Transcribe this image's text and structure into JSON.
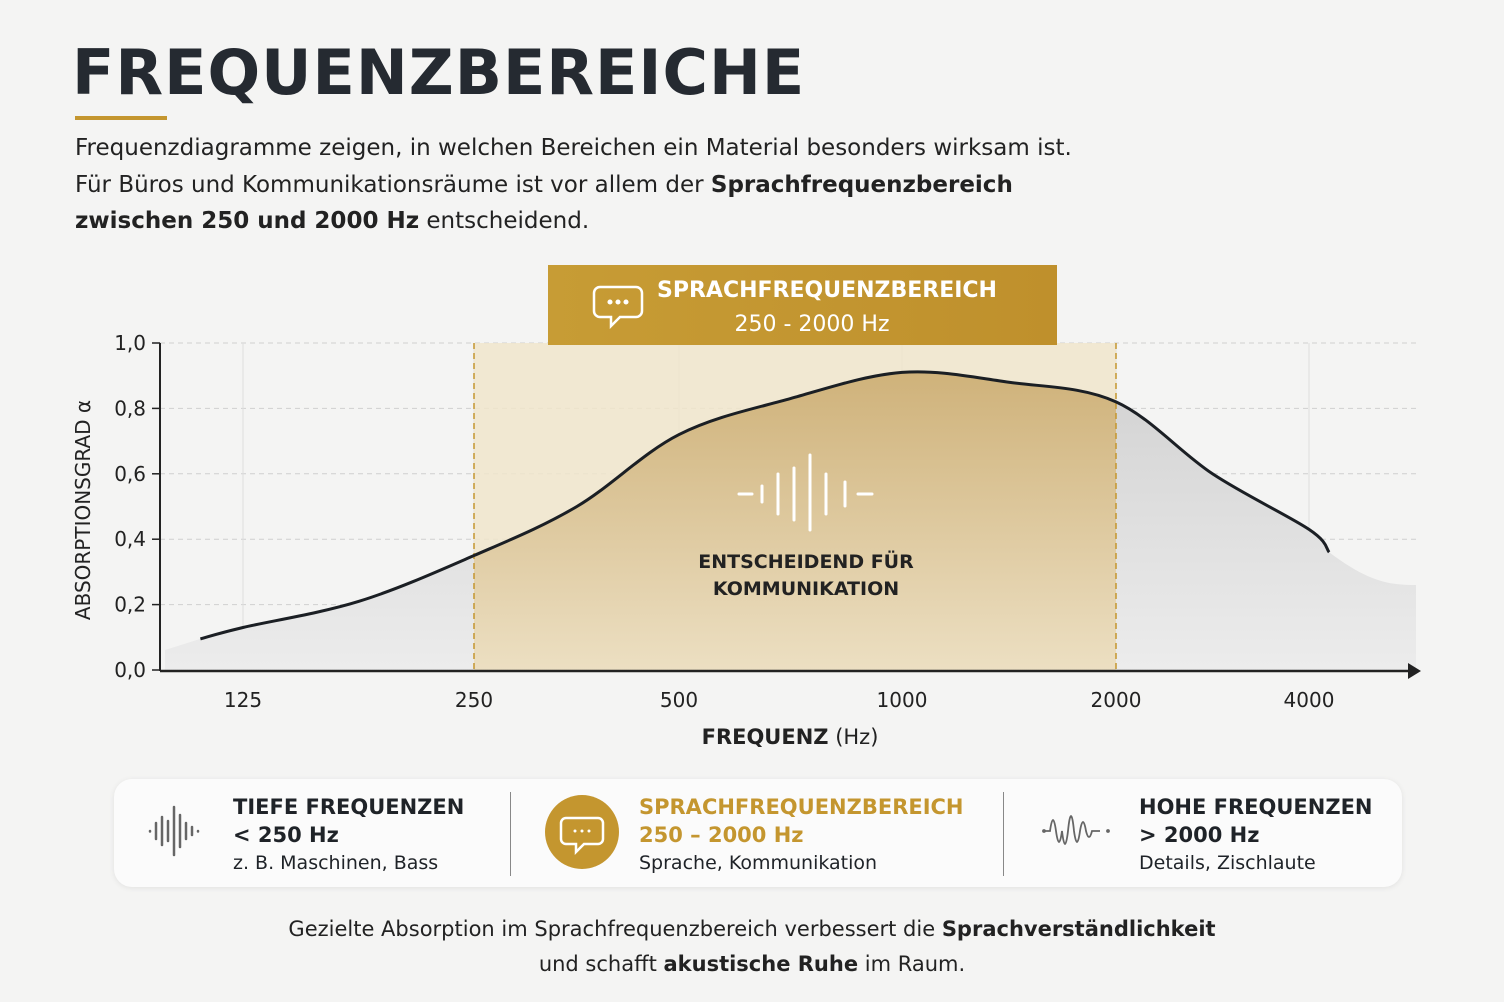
{
  "title": "FREQUENZBEREICHE",
  "intro": {
    "l1": "Frequenzdiagramme zeigen, in welchen Bereichen ein Material besonders wirksam ist.",
    "l2a": "Für Büros und Kommunikationsräume ist vor allem der ",
    "l2b": "Sprachfrequenzbereich",
    "l3a": "zwischen 250 und 2000 Hz",
    "l3b": " entscheidend."
  },
  "colors": {
    "accent": "#c4962f",
    "curve": "#1b1f24",
    "band": "#f0e3c6",
    "grey_fill": "#d9d9d9"
  },
  "chart_data": {
    "type": "area",
    "xlabel_bold": "FREQUENZ",
    "xlabel_unit": " (Hz)",
    "ylabel": "ABSORPTIONSGRAD α",
    "x_scale": "log",
    "x_ticks": [
      125,
      250,
      500,
      1000,
      2000,
      4000
    ],
    "x_tick_labels": [
      "125",
      "250",
      "500",
      "1000",
      "2000",
      "4000"
    ],
    "y_ticks": [
      0,
      0.2,
      0.4,
      0.6,
      0.8,
      1.0
    ],
    "y_tick_labels": [
      "0,0",
      "0,2",
      "0,4",
      "0,6",
      "0,8",
      "1,0"
    ],
    "ylim": [
      0,
      1.0
    ],
    "grid": true,
    "highlight_range": [
      250,
      2000
    ],
    "highlight_title": "SPRACHFREQUENZBEREICH",
    "highlight_sub": "250 - 2000 Hz",
    "annotation": [
      "ENTSCHEIDEND FÜR",
      "KOMMUNIKATION"
    ],
    "series": [
      {
        "points": [
          [
            110,
            0.095
          ],
          [
            125,
            0.13
          ],
          [
            177,
            0.21
          ],
          [
            250,
            0.35
          ],
          [
            354,
            0.5
          ],
          [
            500,
            0.72
          ],
          [
            707,
            0.83
          ],
          [
            1000,
            0.91
          ],
          [
            1414,
            0.88
          ],
          [
            2000,
            0.82
          ],
          [
            2828,
            0.6
          ],
          [
            4000,
            0.43
          ],
          [
            4300,
            0.36
          ]
        ]
      }
    ]
  },
  "legend": [
    {
      "icon": "low-wave-icon",
      "title": "TIEFE FREQUENZEN",
      "range": "< 250 Hz",
      "desc": "z. B. Maschinen, Bass"
    },
    {
      "icon": "speech-bubble-icon",
      "title": "SPRACHFREQUENZBEREICH",
      "range": "250 – 2000 Hz",
      "desc": "Sprache, Kommunikation"
    },
    {
      "icon": "high-wave-icon",
      "title": "HOHE FREQUENZEN",
      "range": "> 2000 Hz",
      "desc": "Details, Zischlaute"
    }
  ],
  "footer": {
    "a": "Gezielte Absorption im Sprachfrequenzbereich verbessert die ",
    "b": "Sprachverständlichkeit",
    "c": "und schafft ",
    "d": "akustische Ruhe",
    "e": " im Raum."
  }
}
